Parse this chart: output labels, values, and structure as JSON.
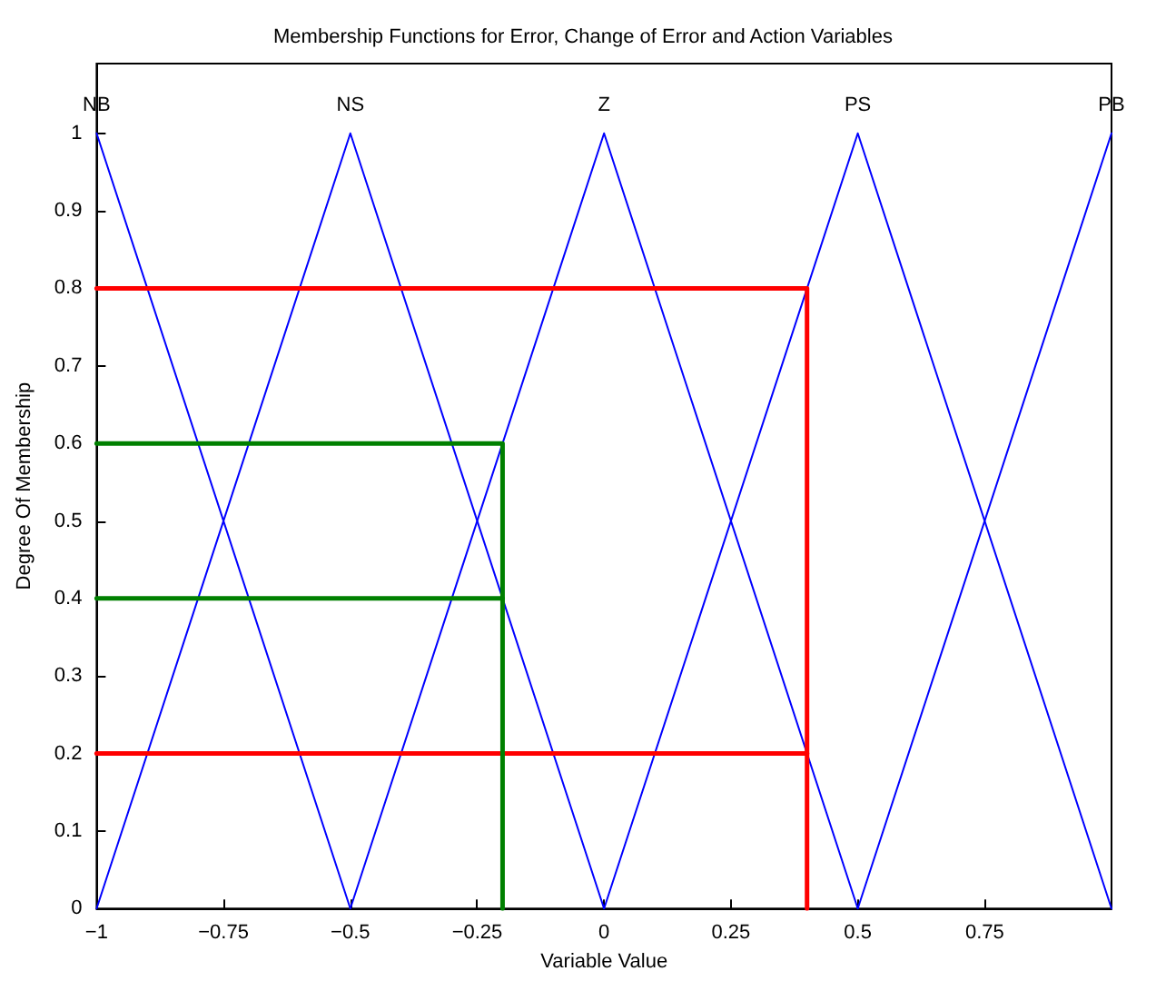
{
  "chart_data": {
    "type": "line",
    "title": "Membership Functions for Error, Change of Error and Action Variables",
    "xlabel": "Variable Value",
    "ylabel": "Degree Of Membership",
    "xlim": [
      -1,
      1
    ],
    "xticks": [
      -1,
      -0.75,
      -0.5,
      -0.25,
      0,
      0.25,
      0.5,
      0.75
    ],
    "ylim": [
      0,
      1.09
    ],
    "yticks": [
      0,
      0.1,
      0.2,
      0.3,
      0.4,
      0.5,
      0.6,
      0.7,
      0.8,
      0.9,
      1
    ],
    "marker": "none",
    "line_style": "solid",
    "series": [
      {
        "name": "NB",
        "color": "#0000ff",
        "x": [
          -1,
          -0.5
        ],
        "values": [
          1,
          0
        ]
      },
      {
        "name": "NS",
        "color": "#0000ff",
        "x": [
          -1,
          -0.5,
          0
        ],
        "values": [
          0,
          1,
          0
        ]
      },
      {
        "name": "Z",
        "color": "#0000ff",
        "x": [
          -0.5,
          0,
          0.5
        ],
        "values": [
          0,
          1,
          0
        ]
      },
      {
        "name": "PS",
        "color": "#0000ff",
        "x": [
          0,
          0.5,
          1
        ],
        "values": [
          0,
          1,
          0
        ]
      },
      {
        "name": "PB",
        "color": "#0000ff",
        "x": [
          0.5,
          1
        ],
        "values": [
          0,
          1
        ]
      },
      {
        "color": "#ff0000",
        "x": [
          -1,
          0.4,
          0.4
        ],
        "values": [
          0.8,
          0.8,
          0
        ]
      },
      {
        "color": "#ff0000",
        "x": [
          -1,
          0.4
        ],
        "values": [
          0.2,
          0.2
        ]
      },
      {
        "color": "#008000",
        "x": [
          -1,
          -0.2,
          -0.2
        ],
        "values": [
          0.6,
          0.6,
          0
        ]
      },
      {
        "color": "#008000",
        "x": [
          -1,
          -0.2
        ],
        "values": [
          0.4,
          0.4
        ]
      }
    ]
  }
}
